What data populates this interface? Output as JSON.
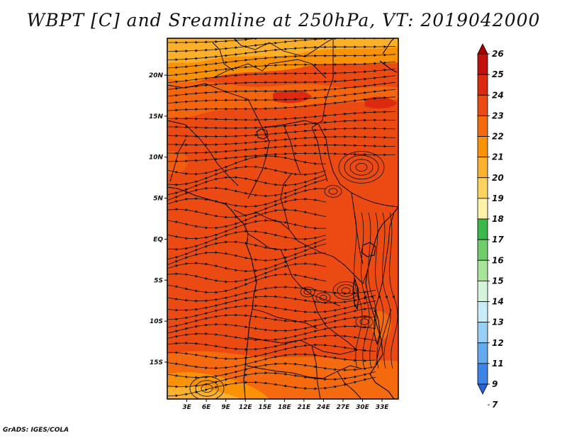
{
  "title": "WBPT [C] and Sreamline at 250hPa, VT: 2019042000",
  "credit": "GrADS: IGES/COLA",
  "map": {
    "variable": "Wet-bulb potential temperature",
    "units": "C",
    "level": "250hPa",
    "valid_time": "2019042000",
    "lon_range": [
      0,
      35.5
    ],
    "lat_range": [
      -19.5,
      24.5
    ],
    "lat_ticks": [
      {
        "value": 20,
        "label": "20N"
      },
      {
        "value": 15,
        "label": "15N"
      },
      {
        "value": 10,
        "label": "10N"
      },
      {
        "value": 5,
        "label": "5N"
      },
      {
        "value": 0,
        "label": "EQ"
      },
      {
        "value": -5,
        "label": "5S"
      },
      {
        "value": -10,
        "label": "10S"
      },
      {
        "value": -15,
        "label": "15S"
      }
    ],
    "lon_ticks": [
      {
        "value": 3,
        "label": "3E"
      },
      {
        "value": 6,
        "label": "6E"
      },
      {
        "value": 9,
        "label": "9E"
      },
      {
        "value": 12,
        "label": "12E"
      },
      {
        "value": 15,
        "label": "15E"
      },
      {
        "value": 18,
        "label": "18E"
      },
      {
        "value": 21,
        "label": "21E"
      },
      {
        "value": 24,
        "label": "24E"
      },
      {
        "value": 27,
        "label": "27E"
      },
      {
        "value": 30,
        "label": "30E"
      },
      {
        "value": 33,
        "label": "33E"
      }
    ]
  },
  "colorbar": {
    "labels": [
      "26",
      "25",
      "24",
      "23",
      "22",
      "21",
      "20",
      "19",
      "18",
      "17",
      "16",
      "15",
      "14",
      "13",
      "12",
      "11",
      "9",
      "7"
    ],
    "colors": [
      "#a50000",
      "#c4100a",
      "#dc2a10",
      "#eb4a12",
      "#f56a0e",
      "#fa9208",
      "#fcb22e",
      "#fdd25e",
      "#fef3a8",
      "#3cb84a",
      "#6ecf6a",
      "#a6e49a",
      "#d6f4dc",
      "#c8ecf8",
      "#96d0f5",
      "#64aaee",
      "#3c84e6",
      "#2864d8"
    ]
  },
  "colors": {
    "field_main": "#eb4a12",
    "field_warm": "#f56a0e",
    "field_orange": "#fa9208",
    "field_light": "#fcb22e",
    "field_hot": "#dc2a10",
    "streamline": "#111111"
  }
}
